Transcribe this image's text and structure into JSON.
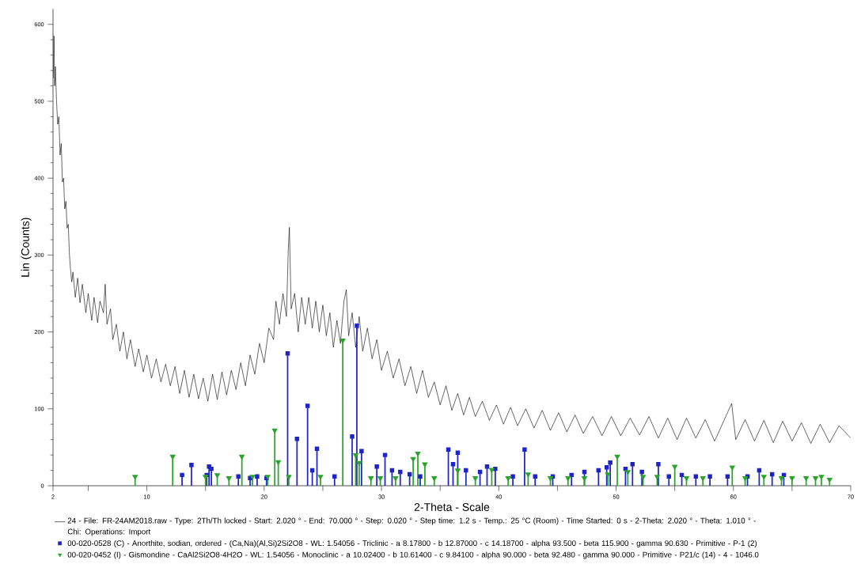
{
  "chart_data": {
    "type": "line",
    "xlabel": "2-Theta - Scale",
    "ylabel": "Lin (Counts)",
    "xlim": [
      2,
      70
    ],
    "ylim": [
      0,
      620
    ],
    "xticks": [
      2,
      {
        "value": 5,
        "label": null
      },
      10,
      {
        "value": 15,
        "label": null
      },
      20,
      {
        "value": 25,
        "label": null
      },
      30,
      {
        "value": 35,
        "label": null
      },
      40,
      {
        "value": 45,
        "label": null
      },
      50,
      {
        "value": 55,
        "label": null
      },
      60,
      {
        "value": 65,
        "label": null
      },
      70
    ],
    "yticks": [
      0,
      100,
      200,
      300,
      400,
      500,
      600
    ],
    "legend": "bottom",
    "series": [
      {
        "name": "24 - File: FR-24AM2018.raw - Type: 2Th/Th locked - Start: 2.020 ° - End: 70.000 ° - Step: 0.020 ° - Step time: 1.2 s - Temp.: 25 °C (Room) - Time Started: 0 s - 2-Theta: 2.020 ° - Theta: 1.010 ° - Chi: Operations: Import",
        "color": "#000000",
        "x": [
          2.02,
          2.08,
          2.14,
          2.2,
          2.3,
          2.4,
          2.5,
          2.6,
          2.7,
          2.8,
          2.9,
          3.0,
          3.1,
          3.2,
          3.3,
          3.4,
          3.5,
          3.6,
          3.7,
          3.9,
          4.1,
          4.3,
          4.5,
          4.8,
          5.0,
          5.3,
          5.5,
          5.8,
          6.0,
          6.3,
          6.45,
          6.6,
          6.9,
          7.1,
          7.4,
          7.7,
          8.0,
          8.3,
          8.6,
          9.0,
          9.3,
          9.7,
          10.0,
          10.4,
          10.8,
          11.2,
          11.6,
          12.0,
          12.4,
          12.8,
          13.2,
          13.6,
          14.0,
          14.4,
          14.8,
          15.2,
          15.6,
          16.0,
          16.4,
          16.8,
          17.2,
          17.6,
          18.0,
          18.4,
          18.8,
          19.2,
          19.6,
          20.0,
          20.4,
          20.8,
          21.0,
          21.3,
          21.6,
          21.9,
          22.05,
          22.15,
          22.3,
          22.6,
          22.9,
          23.2,
          23.5,
          23.8,
          24.1,
          24.4,
          24.7,
          25.0,
          25.3,
          25.6,
          25.9,
          26.2,
          26.5,
          26.8,
          27.0,
          27.2,
          27.5,
          27.8,
          28.1,
          28.4,
          28.8,
          29.2,
          29.6,
          30.0,
          30.5,
          31.0,
          31.5,
          32.0,
          32.5,
          33.0,
          33.5,
          34.0,
          34.5,
          35.0,
          35.5,
          36.0,
          36.5,
          37.0,
          37.5,
          38.0,
          38.6,
          39.2,
          39.8,
          40.4,
          41.0,
          41.6,
          42.3,
          43.0,
          43.7,
          44.4,
          45.1,
          45.8,
          46.5,
          47.2,
          48.0,
          48.8,
          49.6,
          50.4,
          51.2,
          52.0,
          52.8,
          53.6,
          54.4,
          55.2,
          56.0,
          56.8,
          57.6,
          58.4,
          59.2,
          59.85,
          60.2,
          61.0,
          61.8,
          62.6,
          63.4,
          64.2,
          65.0,
          65.8,
          66.6,
          67.4,
          68.2,
          69.0,
          70.0
        ],
        "values": [
          530,
          585,
          520,
          545,
          500,
          470,
          480,
          430,
          445,
          395,
          400,
          360,
          370,
          335,
          340,
          300,
          280,
          265,
          278,
          245,
          270,
          238,
          262,
          225,
          250,
          215,
          245,
          212,
          240,
          225,
          262,
          210,
          230,
          190,
          210,
          175,
          200,
          165,
          190,
          155,
          178,
          148,
          170,
          140,
          165,
          135,
          158,
          130,
          155,
          120,
          150,
          115,
          145,
          113,
          140,
          110,
          145,
          112,
          148,
          118,
          150,
          125,
          160,
          130,
          170,
          145,
          185,
          160,
          205,
          190,
          240,
          210,
          250,
          220,
          305,
          336,
          230,
          250,
          200,
          245,
          210,
          245,
          205,
          240,
          200,
          235,
          195,
          225,
          180,
          215,
          185,
          240,
          255,
          195,
          225,
          180,
          220,
          175,
          205,
          165,
          190,
          150,
          175,
          140,
          165,
          130,
          155,
          120,
          150,
          115,
          135,
          105,
          130,
          98,
          120,
          92,
          115,
          90,
          110,
          85,
          105,
          80,
          102,
          78,
          100,
          75,
          98,
          72,
          95,
          70,
          92,
          68,
          90,
          65,
          90,
          65,
          88,
          66,
          90,
          62,
          88,
          60,
          88,
          62,
          86,
          58,
          85,
          107,
          60,
          86,
          58,
          85,
          56,
          84,
          58,
          82,
          55,
          80,
          56,
          78,
          62
        ]
      },
      {
        "name": "00-020-0528 (C) - Anorthite, sodian, ordered - (Ca,Na)(Al,Si)2Si2O8 - WL: 1.54056 - Triclinic - a 8.17800 - b 12.87000 - c 14.18700 - alpha 93.500 - beta 115.900 - gamma 90.630 - Primitive - P-1 (2)",
        "type": "lollipop",
        "color": "#1e24c8",
        "marker": "square",
        "x": [
          13.0,
          13.8,
          15.1,
          15.3,
          15.5,
          17.8,
          18.8,
          19.4,
          20.2,
          22.0,
          22.8,
          23.7,
          24.1,
          24.5,
          26.0,
          27.5,
          27.9,
          28.3,
          29.6,
          30.3,
          30.9,
          31.6,
          32.4,
          33.3,
          35.7,
          36.1,
          36.5,
          37.2,
          38.4,
          39.0,
          39.7,
          41.2,
          42.2,
          43.1,
          44.6,
          46.2,
          47.3,
          48.5,
          49.2,
          49.5,
          50.8,
          51.4,
          52.2,
          53.6,
          54.5,
          55.6,
          56.8,
          58.0,
          59.5,
          61.2,
          62.2,
          63.3,
          64.3
        ],
        "values": [
          14,
          27,
          14,
          25,
          22,
          12,
          10,
          12,
          10,
          172,
          61,
          104,
          20,
          48,
          12,
          64,
          208,
          45,
          25,
          40,
          20,
          18,
          15,
          12,
          47,
          28,
          43,
          20,
          18,
          25,
          22,
          12,
          47,
          12,
          12,
          14,
          18,
          20,
          24,
          30,
          22,
          28,
          18,
          28,
          12,
          14,
          12,
          12,
          12,
          12,
          20,
          15,
          14
        ]
      },
      {
        "name": "00-020-0452 (I) - Gismondine - CaAl2Si2O8·4H2O - WL: 1.54056 - Monoclinic - a 10.02400 - b 10.61400 - c 9.84100 - alpha 90.000 - beta 92.480 - gamma 90.000 - Primitive - P21/c (14) - 4 - 1046.0",
        "type": "lollipop",
        "color": "#2aa52a",
        "marker": "triangle",
        "x": [
          9.0,
          12.2,
          15.0,
          16.0,
          17.0,
          18.1,
          19.0,
          20.3,
          20.9,
          21.2,
          22.1,
          24.8,
          26.7,
          27.8,
          28.1,
          29.1,
          29.9,
          31.2,
          32.7,
          33.1,
          33.7,
          34.5,
          36.5,
          38.0,
          39.4,
          40.8,
          42.5,
          44.4,
          45.9,
          47.3,
          49.3,
          50.1,
          51.0,
          52.3,
          53.5,
          55.0,
          56.0,
          57.4,
          59.9,
          61.0,
          62.6,
          64.1,
          65.0,
          66.2,
          67.0,
          67.5,
          68.2
        ],
        "values": [
          12,
          38,
          12,
          14,
          10,
          38,
          12,
          12,
          72,
          31,
          12,
          12,
          189,
          40,
          30,
          10,
          10,
          10,
          35,
          42,
          28,
          10,
          20,
          10,
          21,
          10,
          15,
          10,
          10,
          10,
          15,
          38,
          18,
          12,
          12,
          25,
          10,
          10,
          24,
          10,
          12,
          10,
          10,
          10,
          10,
          12,
          8
        ]
      }
    ]
  }
}
